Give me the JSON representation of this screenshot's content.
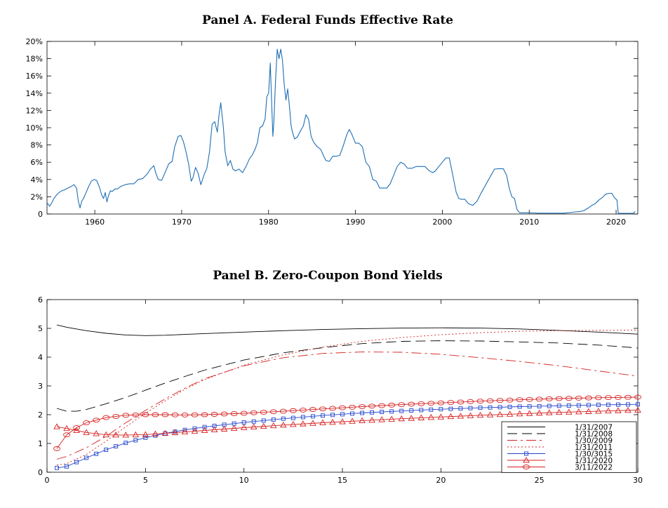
{
  "chart_data": [
    {
      "type": "line",
      "title": "Panel A. Federal Funds Effective Rate",
      "xlim": [
        1954.5,
        2022.5
      ],
      "ylim": [
        0,
        20
      ],
      "x_ticks": [
        1960,
        1970,
        1980,
        1990,
        2000,
        2010,
        2020
      ],
      "x_tick_labels": [
        "1960",
        "1970",
        "1980",
        "1990",
        "2000",
        "2010",
        "2020"
      ],
      "y_ticks": [
        0,
        2,
        4,
        6,
        8,
        10,
        12,
        14,
        16,
        18,
        20
      ],
      "y_tick_labels": [
        "0",
        "2%",
        "4%",
        "6%",
        "8%",
        "10%",
        "12%",
        "14%",
        "16%",
        "18%",
        "20%"
      ],
      "grid": false,
      "colors": {
        "line": "#1f6fb4"
      },
      "series": [
        {
          "x": [
            1954.5,
            1954.8,
            1955.0,
            1955.3,
            1955.6,
            1955.9,
            1956.2,
            1956.5,
            1956.9,
            1957.3,
            1957.6,
            1957.9,
            1958.1,
            1958.3,
            1958.5,
            1958.7,
            1959.0,
            1959.3,
            1959.6,
            1959.9,
            1960.2,
            1960.5,
            1960.8,
            1961.0,
            1961.2,
            1961.4,
            1961.6,
            1961.8,
            1962.0,
            1962.3,
            1962.6,
            1963.0,
            1963.5,
            1964.0,
            1964.5,
            1965.0,
            1965.5,
            1966.0,
            1966.4,
            1966.8,
            1967.0,
            1967.3,
            1967.7,
            1968.0,
            1968.5,
            1968.9,
            1969.2,
            1969.6,
            1969.9,
            1970.2,
            1970.5,
            1970.8,
            1971.1,
            1971.3,
            1971.6,
            1971.9,
            1972.2,
            1972.6,
            1972.9,
            1973.2,
            1973.5,
            1973.8,
            1974.1,
            1974.3,
            1974.5,
            1974.8,
            1975.0,
            1975.3,
            1975.6,
            1975.9,
            1976.2,
            1976.6,
            1977.0,
            1977.4,
            1977.8,
            1978.1,
            1978.4,
            1978.7,
            1979.0,
            1979.3,
            1979.6,
            1979.8,
            1980.0,
            1980.2,
            1980.35,
            1980.5,
            1980.6,
            1980.8,
            1981.0,
            1981.2,
            1981.4,
            1981.6,
            1981.8,
            1982.0,
            1982.2,
            1982.4,
            1982.6,
            1982.8,
            1983.0,
            1983.3,
            1983.6,
            1984.0,
            1984.3,
            1984.6,
            1984.9,
            1985.2,
            1985.6,
            1986.0,
            1986.3,
            1986.6,
            1987.0,
            1987.4,
            1987.8,
            1988.2,
            1988.6,
            1989.0,
            1989.3,
            1989.6,
            1990.0,
            1990.4,
            1990.8,
            1991.2,
            1991.6,
            1992.0,
            1992.4,
            1992.8,
            1993.2,
            1993.6,
            1994.0,
            1994.4,
            1994.8,
            1995.2,
            1995.6,
            1996.0,
            1996.5,
            1997.0,
            1997.5,
            1998.0,
            1998.5,
            1998.9,
            1999.2,
            1999.6,
            2000.0,
            2000.4,
            2000.8,
            2001.0,
            2001.3,
            2001.6,
            2001.9,
            2002.2,
            2002.6,
            2003.0,
            2003.5,
            2004.0,
            2004.5,
            2005.0,
            2005.5,
            2006.0,
            2006.5,
            2007.0,
            2007.4,
            2007.7,
            2008.0,
            2008.3,
            2008.6,
            2008.9,
            2009.2,
            2010.0,
            2011.0,
            2012.0,
            2013.0,
            2014.0,
            2015.0,
            2015.9,
            2016.3,
            2016.8,
            2017.2,
            2017.6,
            2018.0,
            2018.4,
            2018.8,
            2019.2,
            2019.5,
            2019.8,
            2020.1,
            2020.25,
            2020.5,
            2021.0,
            2021.5,
            2022.0,
            2022.2
          ],
          "y": [
            1.3,
            0.9,
            1.2,
            1.8,
            2.2,
            2.5,
            2.7,
            2.8,
            3.0,
            3.2,
            3.4,
            3.0,
            1.5,
            0.7,
            1.5,
            1.8,
            2.5,
            3.2,
            3.8,
            4.0,
            3.9,
            3.2,
            2.2,
            1.8,
            2.5,
            1.4,
            2.2,
            2.7,
            2.6,
            2.9,
            2.9,
            3.2,
            3.4,
            3.5,
            3.5,
            4.0,
            4.1,
            4.6,
            5.2,
            5.6,
            4.8,
            4.0,
            3.9,
            4.6,
            5.8,
            6.1,
            7.8,
            9.0,
            9.1,
            8.4,
            7.2,
            5.8,
            3.8,
            4.2,
            5.4,
            4.7,
            3.4,
            4.6,
            5.3,
            7.2,
            10.4,
            10.7,
            9.5,
            11.5,
            12.9,
            10.0,
            7.2,
            5.6,
            6.2,
            5.2,
            5.0,
            5.2,
            4.8,
            5.5,
            6.4,
            6.8,
            7.4,
            8.2,
            10.0,
            10.2,
            11.0,
            13.6,
            14.0,
            17.5,
            13.0,
            9.0,
            10.5,
            15.5,
            19.1,
            18.0,
            19.1,
            17.8,
            15.0,
            13.2,
            14.5,
            12.5,
            10.2,
            9.3,
            8.7,
            8.9,
            9.5,
            10.2,
            11.5,
            11.0,
            9.0,
            8.3,
            7.8,
            7.5,
            6.8,
            6.2,
            6.1,
            6.7,
            6.7,
            6.8,
            7.9,
            9.2,
            9.8,
            9.2,
            8.2,
            8.2,
            7.8,
            6.0,
            5.5,
            4.0,
            3.8,
            3.0,
            3.0,
            3.0,
            3.5,
            4.5,
            5.5,
            6.0,
            5.8,
            5.3,
            5.3,
            5.5,
            5.5,
            5.5,
            5.0,
            4.8,
            5.0,
            5.5,
            6.0,
            6.5,
            6.5,
            5.5,
            4.0,
            2.5,
            1.8,
            1.7,
            1.7,
            1.2,
            1.0,
            1.5,
            2.5,
            3.4,
            4.3,
            5.2,
            5.25,
            5.25,
            4.5,
            3.0,
            2.0,
            1.8,
            0.5,
            0.15,
            0.15,
            0.15,
            0.1,
            0.1,
            0.1,
            0.1,
            0.2,
            0.3,
            0.4,
            0.7,
            1.0,
            1.2,
            1.6,
            1.9,
            2.3,
            2.4,
            2.4,
            1.9,
            1.6,
            0.1,
            0.08,
            0.08,
            0.08,
            0.08,
            0.3
          ]
        }
      ]
    },
    {
      "type": "line",
      "title": "Panel B. Zero-Coupon Bond Yields",
      "xlim": [
        0,
        30
      ],
      "ylim": [
        0,
        6
      ],
      "x_ticks": [
        0,
        5,
        10,
        15,
        20,
        25,
        30
      ],
      "x_tick_labels": [
        "0",
        "5",
        "10",
        "15",
        "20",
        "25",
        "30"
      ],
      "y_ticks": [
        0,
        1,
        2,
        3,
        4,
        5,
        6
      ],
      "y_tick_labels": [
        "0",
        "1",
        "2",
        "3",
        "4",
        "5",
        "6"
      ],
      "grid": false,
      "legend_position": "bottom-right",
      "series": [
        {
          "name": "1/31/2007",
          "color": "#000000",
          "dash": "",
          "marker": "none",
          "x": [
            0.5,
            1,
            2,
            3,
            4,
            5,
            6,
            7,
            8,
            10,
            12,
            14,
            16,
            18,
            20,
            22,
            24,
            26,
            28,
            30
          ],
          "y": [
            5.12,
            5.04,
            4.92,
            4.83,
            4.77,
            4.75,
            4.76,
            4.79,
            4.82,
            4.87,
            4.92,
            4.96,
            4.99,
            5.01,
            5.02,
            5.01,
            4.98,
            4.93,
            4.87,
            4.8
          ]
        },
        {
          "name": "1/31/2008",
          "color": "#000000",
          "dash": "14,7",
          "marker": "none",
          "x": [
            0.5,
            1,
            1.5,
            2,
            3,
            4,
            5,
            6,
            7,
            8,
            10,
            12,
            14,
            16,
            18,
            20,
            22,
            24,
            26,
            28,
            30
          ],
          "y": [
            2.22,
            2.12,
            2.12,
            2.18,
            2.38,
            2.6,
            2.85,
            3.1,
            3.33,
            3.55,
            3.9,
            4.15,
            4.33,
            4.47,
            4.55,
            4.57,
            4.56,
            4.53,
            4.49,
            4.42,
            4.32
          ]
        },
        {
          "name": "1/30/2009",
          "color": "#d62020",
          "dash": "14,5,3,5",
          "marker": "none",
          "x": [
            0.5,
            1,
            2,
            3,
            4,
            5,
            6,
            7,
            8,
            10,
            12,
            14,
            16,
            18,
            20,
            22,
            24,
            26,
            28,
            30
          ],
          "y": [
            0.45,
            0.55,
            0.85,
            1.25,
            1.72,
            2.15,
            2.55,
            2.92,
            3.25,
            3.7,
            3.98,
            4.13,
            4.18,
            4.17,
            4.1,
            3.98,
            3.85,
            3.7,
            3.52,
            3.34
          ]
        },
        {
          "name": "1/31/2011",
          "color": "#d62020",
          "dash": "2,3",
          "marker": "none",
          "x": [
            0.5,
            1,
            2,
            3,
            4,
            5,
            6,
            7,
            8,
            10,
            12,
            14,
            16,
            18,
            20,
            22,
            24,
            26,
            28,
            30
          ],
          "y": [
            0.25,
            0.3,
            0.62,
            1.08,
            1.58,
            2.05,
            2.48,
            2.88,
            3.22,
            3.72,
            4.08,
            4.35,
            4.55,
            4.68,
            4.78,
            4.85,
            4.9,
            4.92,
            4.93,
            4.94
          ]
        },
        {
          "name": "1/30/3015",
          "color": "#2244cc",
          "dash": "",
          "marker": "square",
          "x": [
            0.5,
            1,
            1.5,
            2,
            3,
            4,
            5,
            6,
            7,
            8,
            10,
            12,
            14,
            16,
            18,
            20,
            22,
            24,
            26,
            28,
            30
          ],
          "y": [
            0.15,
            0.2,
            0.35,
            0.5,
            0.78,
            1.02,
            1.2,
            1.35,
            1.47,
            1.57,
            1.73,
            1.86,
            1.97,
            2.06,
            2.13,
            2.19,
            2.24,
            2.28,
            2.31,
            2.34,
            2.36
          ]
        },
        {
          "name": "1/31/2020",
          "color": "#d62020",
          "dash": "",
          "marker": "triangle",
          "x": [
            0.5,
            1,
            1.5,
            2,
            3,
            4,
            5,
            6,
            7,
            8,
            10,
            12,
            14,
            16,
            18,
            20,
            22,
            24,
            26,
            28,
            30
          ],
          "y": [
            1.58,
            1.52,
            1.45,
            1.38,
            1.3,
            1.29,
            1.31,
            1.35,
            1.4,
            1.45,
            1.55,
            1.64,
            1.72,
            1.79,
            1.86,
            1.92,
            1.98,
            2.03,
            2.08,
            2.12,
            2.16
          ]
        },
        {
          "name": "3/11/2022",
          "color": "#d62020",
          "dash": "",
          "marker": "circle",
          "x": [
            0.5,
            1,
            1.5,
            2,
            3,
            4,
            5,
            6,
            7,
            8,
            10,
            12,
            14,
            16,
            18,
            20,
            22,
            24,
            26,
            28,
            30
          ],
          "y": [
            0.82,
            1.3,
            1.55,
            1.72,
            1.9,
            1.98,
            2.0,
            2.0,
            1.99,
            2.0,
            2.05,
            2.12,
            2.2,
            2.28,
            2.35,
            2.41,
            2.47,
            2.52,
            2.56,
            2.59,
            2.61
          ]
        }
      ]
    }
  ]
}
